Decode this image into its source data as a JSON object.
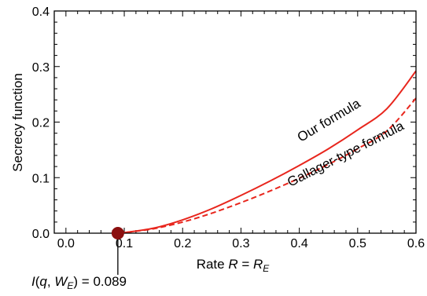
{
  "chart_data": {
    "type": "line",
    "title": "",
    "xlabel": {
      "prefix": "Rate ",
      "var": "R",
      "eq": " = ",
      "var2": "R",
      "sub": "E"
    },
    "ylabel": "Secrecy function",
    "xlim": [
      -0.02,
      0.6
    ],
    "ylim": [
      0.0,
      0.4
    ],
    "xticks": [
      "0.0",
      "0.1",
      "0.2",
      "0.3",
      "0.4",
      "0.5",
      "0.6"
    ],
    "yticks": [
      "0.0",
      "0.1",
      "0.2",
      "0.3",
      "0.4"
    ],
    "grid": false,
    "legend": "none",
    "series": [
      {
        "name": "Our formula",
        "style": "solid",
        "color": "#e8261d",
        "x": [
          0.089,
          0.1,
          0.15,
          0.2,
          0.25,
          0.3,
          0.35,
          0.4,
          0.45,
          0.5,
          0.55,
          0.6
        ],
        "y": [
          0.0,
          0.001,
          0.009,
          0.024,
          0.044,
          0.068,
          0.094,
          0.122,
          0.152,
          0.186,
          0.224,
          0.292
        ]
      },
      {
        "name": "Gallager-type formula",
        "style": "dashed",
        "color": "#e8261d",
        "x": [
          0.089,
          0.1,
          0.15,
          0.2,
          0.25,
          0.3,
          0.35,
          0.4,
          0.45,
          0.5,
          0.55,
          0.6
        ],
        "y": [
          0.0,
          0.001,
          0.008,
          0.02,
          0.036,
          0.055,
          0.076,
          0.099,
          0.124,
          0.152,
          0.184,
          0.243
        ]
      }
    ],
    "annotations": {
      "marker": {
        "x": 0.089,
        "y": 0.0,
        "color": "#8b0f0f"
      },
      "label": {
        "pre": "I",
        "open": "(",
        "q": "q",
        "comma": ", ",
        "W": "W",
        "sub": "E",
        "close": ")",
        "eq": " = ",
        "value": "0.089"
      }
    }
  }
}
